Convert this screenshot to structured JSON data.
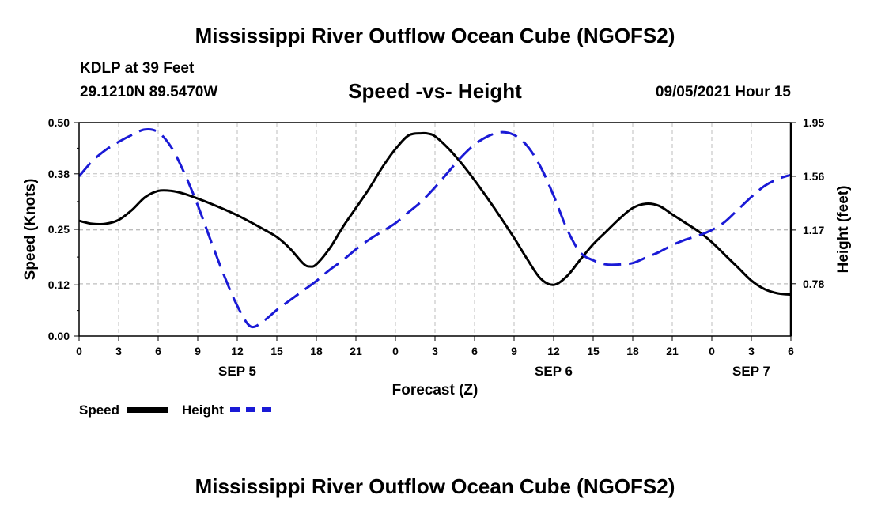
{
  "page": {
    "title_top": "Mississippi River Outflow Ocean Cube (NGOFS2)",
    "title_bottom": "Mississippi River Outflow Ocean Cube (NGOFS2)",
    "station": "KDLP at 39 Feet",
    "coords": "29.1210N  89.5470W",
    "subtitle": "Speed -vs- Height",
    "datetime": "09/05/2021 Hour 15"
  },
  "legend": {
    "speed_label": "Speed",
    "height_label": "Height"
  },
  "colors": {
    "speed": "#000000",
    "height": "#1a1ad6",
    "grid": "#bdbdbd"
  },
  "chart_data": {
    "type": "line",
    "title": "Speed -vs- Height",
    "xlabel": "Forecast (Z)",
    "ylabel": "Speed (Knots)",
    "y2label": "Height (feet)",
    "x_range": [
      0,
      54
    ],
    "ylim": [
      0,
      0.5
    ],
    "y2lim": [
      0.4,
      1.95
    ],
    "x_tick_values": [
      0,
      3,
      6,
      9,
      12,
      15,
      18,
      21,
      24,
      27,
      30,
      33,
      36,
      39,
      42,
      45,
      48,
      51,
      54
    ],
    "x_tick_labels": [
      "0",
      "3",
      "6",
      "9",
      "12",
      "15",
      "18",
      "21",
      "0",
      "3",
      "6",
      "9",
      "12",
      "15",
      "18",
      "21",
      "0",
      "3",
      "6"
    ],
    "date_labels": [
      {
        "x": 12,
        "label": "SEP 5"
      },
      {
        "x": 36,
        "label": "SEP 6"
      },
      {
        "x": 51,
        "label": "SEP 7"
      }
    ],
    "y_ticks": [
      0.0,
      0.12,
      0.25,
      0.38,
      0.5
    ],
    "y_tick_labels": [
      "0.00",
      "0.12",
      "0.25",
      "0.38",
      "0.50"
    ],
    "y2_ticks": [
      0.78,
      1.17,
      1.56,
      1.95
    ],
    "y2_tick_labels": [
      "0.78",
      "1.17",
      "1.56",
      "1.95"
    ],
    "series": [
      {
        "name": "Speed",
        "axis": "left",
        "x": [
          0,
          1,
          2,
          3,
          4,
          5,
          6,
          7,
          8,
          9,
          10,
          11,
          12,
          13,
          14,
          15,
          16,
          17,
          17.5,
          18,
          19,
          20,
          21,
          22,
          23,
          24,
          25,
          26,
          26.5,
          27,
          28,
          29,
          30,
          31,
          32,
          33,
          34,
          35,
          36,
          37,
          38,
          39,
          40,
          41,
          42,
          43,
          44,
          45,
          46,
          47,
          48,
          49,
          50,
          51,
          52,
          53,
          54
        ],
        "values": [
          0.27,
          0.263,
          0.263,
          0.272,
          0.295,
          0.325,
          0.34,
          0.34,
          0.333,
          0.322,
          0.31,
          0.297,
          0.283,
          0.267,
          0.25,
          0.232,
          0.205,
          0.17,
          0.163,
          0.168,
          0.205,
          0.255,
          0.3,
          0.345,
          0.395,
          0.438,
          0.47,
          0.475,
          0.474,
          0.468,
          0.44,
          0.405,
          0.365,
          0.322,
          0.277,
          0.23,
          0.18,
          0.135,
          0.12,
          0.14,
          0.178,
          0.215,
          0.245,
          0.275,
          0.3,
          0.31,
          0.305,
          0.285,
          0.265,
          0.245,
          0.22,
          0.19,
          0.16,
          0.13,
          0.11,
          0.1,
          0.097
        ]
      },
      {
        "name": "Height",
        "axis": "right",
        "x": [
          0,
          1,
          2,
          3,
          4,
          5,
          6,
          7,
          8,
          9,
          10,
          11,
          12,
          13,
          14,
          15,
          16,
          17,
          18,
          19,
          20,
          21,
          22,
          23,
          24,
          25,
          26,
          27,
          28,
          29,
          30,
          31,
          32,
          33,
          34,
          35,
          36,
          37,
          38,
          39,
          40,
          41,
          42,
          43,
          44,
          45,
          46,
          47,
          48,
          49,
          50,
          51,
          52,
          53,
          54
        ],
        "values": [
          1.56,
          1.67,
          1.75,
          1.81,
          1.86,
          1.9,
          1.88,
          1.77,
          1.58,
          1.35,
          1.09,
          0.84,
          0.62,
          0.47,
          0.51,
          0.59,
          0.66,
          0.73,
          0.8,
          0.88,
          0.95,
          1.03,
          1.1,
          1.16,
          1.22,
          1.3,
          1.38,
          1.48,
          1.59,
          1.7,
          1.79,
          1.85,
          1.88,
          1.86,
          1.78,
          1.63,
          1.42,
          1.18,
          1.01,
          0.95,
          0.92,
          0.92,
          0.93,
          0.97,
          1.01,
          1.06,
          1.1,
          1.13,
          1.17,
          1.23,
          1.32,
          1.41,
          1.49,
          1.54,
          1.57
        ]
      }
    ]
  }
}
